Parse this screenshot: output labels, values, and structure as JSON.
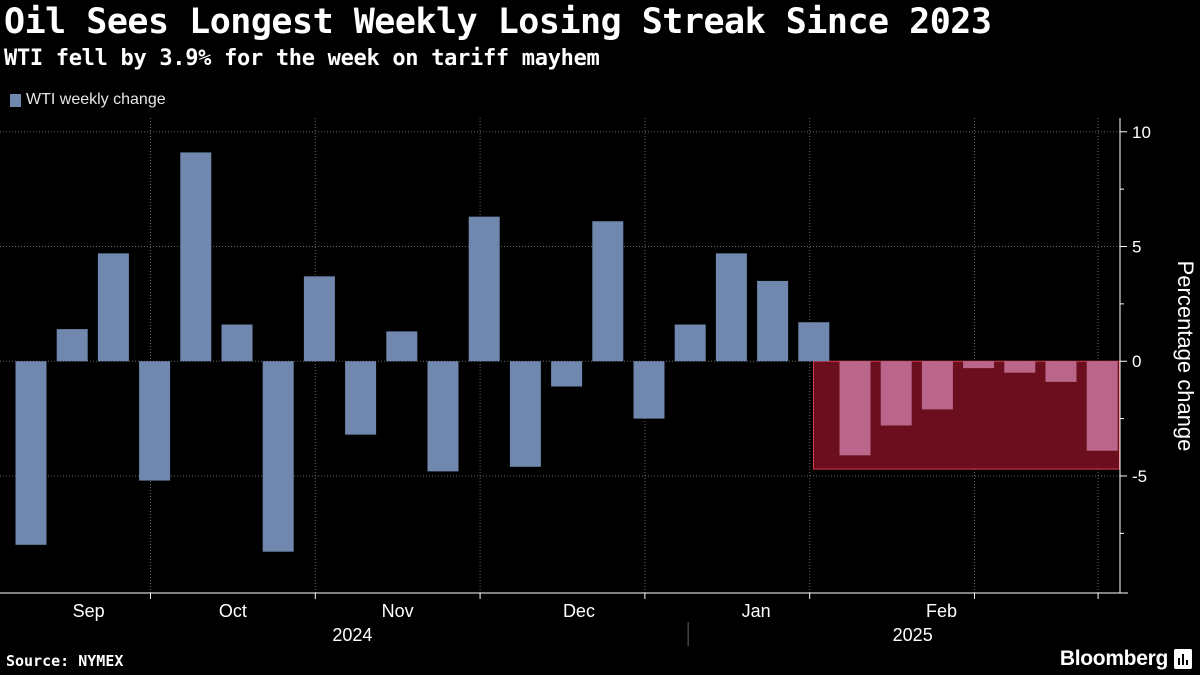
{
  "header": {
    "title": "Oil Sees Longest Weekly Losing Streak Since 2023",
    "subtitle": "WTI fell by 3.9% for the week on tariff mayhem"
  },
  "legend": {
    "label": "WTI weekly change"
  },
  "footer": {
    "source": "Source: NYMEX",
    "brand": "Bloomberg"
  },
  "colors": {
    "background": "#000000",
    "bar": "#7088ad",
    "bar_highlight": "#b9668a",
    "highlight_fill": "#6b0e1d",
    "highlight_border": "#d33a4a",
    "grid": "#666666",
    "axis": "#ffffff",
    "text": "#ffffff"
  },
  "chart_data": {
    "type": "bar",
    "series": [
      {
        "name": "WTI weekly change",
        "values": [
          -8.0,
          1.4,
          4.7,
          -5.2,
          9.1,
          1.6,
          -8.3,
          3.7,
          -3.2,
          1.3,
          -4.8,
          6.3,
          -4.6,
          -1.1,
          6.1,
          -2.5,
          1.6,
          4.7,
          3.5,
          1.7,
          -4.1,
          -2.8,
          -2.1,
          -0.3,
          -0.5,
          -0.9,
          -3.9
        ]
      }
    ],
    "highlight": {
      "start_index": 20,
      "end_index": 26,
      "ymin": -4.7,
      "ymax": 0,
      "description": "Seven consecutive weekly losses"
    },
    "ylim": [
      -10.1,
      10.6
    ],
    "yticks": [
      10,
      5,
      0,
      -5
    ],
    "ylabel": "Percentage change",
    "xlabel": "",
    "month_labels": [
      {
        "label": "Sep",
        "week": 1.4
      },
      {
        "label": "Oct",
        "week": 4.9
      },
      {
        "label": "Nov",
        "week": 8.9
      },
      {
        "label": "Dec",
        "week": 13.3
      },
      {
        "label": "Jan",
        "week": 17.6
      },
      {
        "label": "Feb",
        "week": 22.1
      }
    ],
    "month_boundaries": [
      2.9,
      6.9,
      10.9,
      14.9,
      18.9,
      22.9,
      25.9
    ],
    "year_labels": [
      {
        "label": "2024",
        "week": 7.8
      },
      {
        "label": "2025",
        "week": 21.4
      }
    ],
    "year_boundary": 15.95
  }
}
